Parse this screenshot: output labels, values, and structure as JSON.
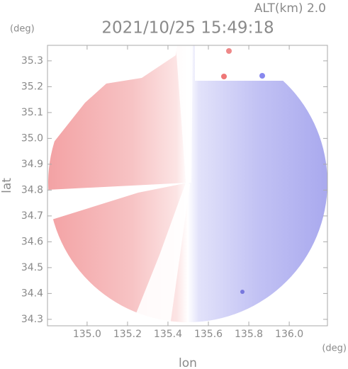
{
  "chart_data": {
    "type": "radar-image",
    "title": "2021/10/25 15:49:18",
    "annotation": "ALT(km) 2.0",
    "xlabel": "lon",
    "ylabel": "lat",
    "xunit": "(deg)",
    "yunit": "(deg)",
    "xlim": [
      134.804,
      136.189
    ],
    "ylim": [
      34.275,
      35.36
    ],
    "xticks": [
      {
        "value": 135.0,
        "label": "135.0"
      },
      135.2,
      135.4,
      135.6,
      135.8,
      {
        "value": 136.0,
        "label": "136.0"
      }
    ],
    "yticks": [
      34.3,
      34.4,
      34.5,
      34.6,
      34.7,
      34.8,
      34.9,
      {
        "value": 35.0,
        "label": "35.0"
      },
      35.1,
      35.2,
      35.3
    ]
  }
}
